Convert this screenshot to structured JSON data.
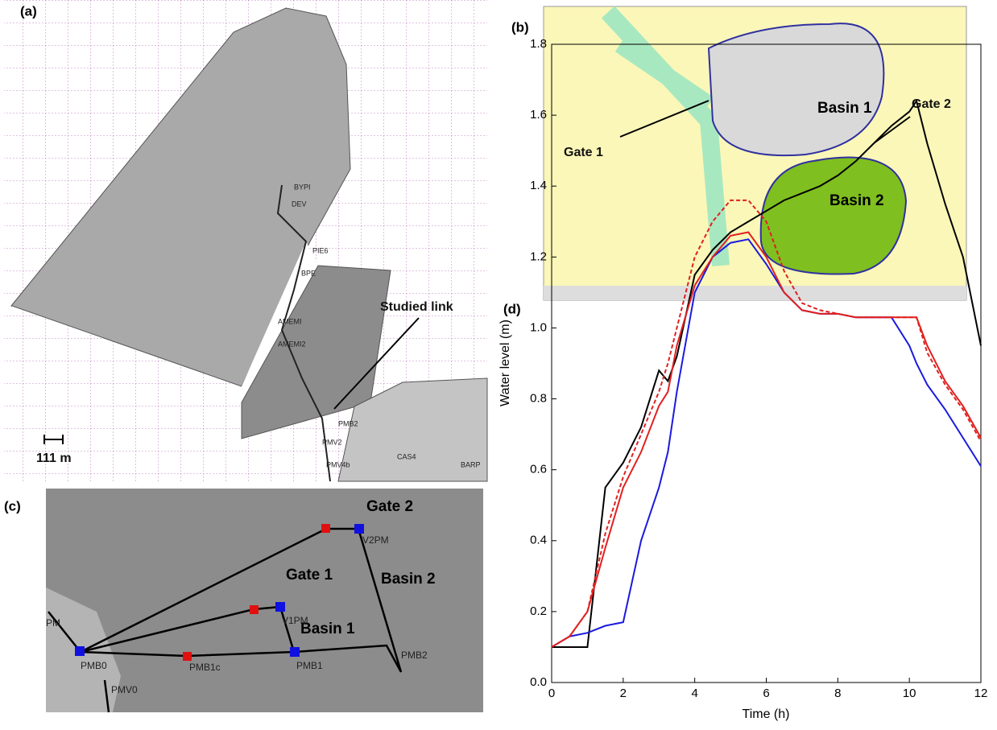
{
  "panels": {
    "a": {
      "label": "(a)",
      "callout": "Studied link",
      "scale": "111 m",
      "places": [
        "BYPI",
        "DEV",
        "PIE6",
        "BPE",
        "AMEMI",
        "AMEMI2",
        "PMB2",
        "PMV2",
        "PMV4b",
        "CAS4",
        "BARP"
      ]
    },
    "b": {
      "label": "(b)",
      "basin1": "Basin 1",
      "basin2": "Basin 2",
      "gate1": "Gate 1",
      "gate2": "Gate 2"
    },
    "c": {
      "label": "(c)",
      "gate2": "Gate 2",
      "gate1": "Gate 1",
      "basin2": "Basin 2",
      "basin1": "Basin 1",
      "nodes": [
        "V2PM",
        "V1PM",
        "PMB0",
        "PMB1c",
        "PMB1",
        "PMB2",
        "PMV0",
        "PM"
      ]
    }
  },
  "chart_data": {
    "type": "line",
    "panel_label": "(d)",
    "xlabel": "Time (h)",
    "ylabel": "Water level (m)",
    "x": [
      0,
      0.5,
      1,
      1.5,
      2,
      2.5,
      3,
      3.25,
      3.5,
      4,
      4.5,
      5,
      5.5,
      6,
      6.5,
      7,
      7.5,
      8,
      8.5,
      9,
      9.5,
      10,
      10.2,
      10.5,
      11,
      11.5,
      12
    ],
    "xlim": [
      0,
      12
    ],
    "xticks": [
      0,
      2,
      4,
      6,
      8,
      10,
      12
    ],
    "ylim": [
      0,
      1.8
    ],
    "yticks": [
      {
        "value": 0,
        "label": "0.0"
      },
      0.2,
      0.4,
      0.6,
      0.8,
      {
        "value": 1,
        "label": "1.0"
      },
      1.2,
      1.4,
      1.6,
      1.8
    ],
    "series": [
      {
        "color": "#000000",
        "dash": false,
        "values": [
          0.1,
          0.1,
          0.1,
          0.55,
          0.62,
          0.72,
          0.88,
          0.85,
          0.92,
          1.15,
          1.22,
          1.27,
          1.3,
          1.33,
          1.36,
          1.38,
          1.4,
          1.43,
          1.47,
          1.52,
          1.57,
          1.61,
          1.64,
          1.52,
          1.35,
          1.2,
          0.95
        ]
      },
      {
        "color": "#1a1adf",
        "dash": false,
        "values": [
          0.1,
          0.13,
          0.14,
          0.16,
          0.17,
          0.4,
          0.55,
          0.65,
          0.82,
          1.1,
          1.2,
          1.24,
          1.25,
          1.18,
          1.1,
          1.05,
          1.04,
          1.04,
          1.03,
          1.03,
          1.03,
          0.95,
          0.9,
          0.84,
          0.77,
          0.69,
          0.61
        ]
      },
      {
        "color": "#e02020",
        "dash": false,
        "values": [
          0.1,
          0.13,
          0.2,
          0.38,
          0.55,
          0.65,
          0.78,
          0.82,
          0.95,
          1.12,
          1.2,
          1.26,
          1.27,
          1.2,
          1.1,
          1.05,
          1.04,
          1.04,
          1.03,
          1.03,
          1.03,
          1.03,
          1.03,
          0.95,
          0.85,
          0.78,
          0.69
        ]
      },
      {
        "color": "#e02020",
        "dash": true,
        "values": [
          0.1,
          0.13,
          0.2,
          0.42,
          0.58,
          0.7,
          0.82,
          0.9,
          1.0,
          1.2,
          1.3,
          1.36,
          1.36,
          1.3,
          1.16,
          1.07,
          1.05,
          1.04,
          1.03,
          1.03,
          1.03,
          1.03,
          1.03,
          0.93,
          0.84,
          0.77,
          0.68
        ]
      }
    ]
  }
}
